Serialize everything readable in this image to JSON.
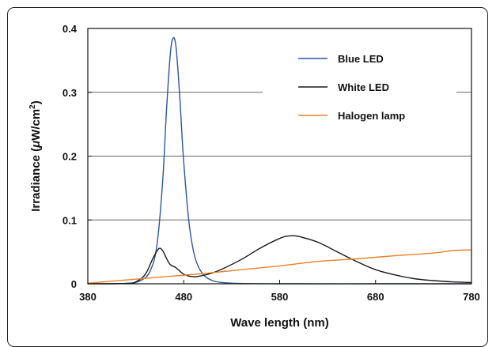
{
  "chart_data": {
    "type": "line",
    "title": "",
    "xlabel": "Wave length (nm)",
    "ylabel_prefix": "Irradiance (",
    "ylabel_mu": "μ",
    "ylabel_unit": "W/cm",
    "ylabel_sup": "2",
    "ylabel_suffix": ")",
    "xlim": [
      380,
      780
    ],
    "ylim": [
      0,
      0.4
    ],
    "xticks": [
      "380",
      "480",
      "580",
      "680",
      "780"
    ],
    "yticks": [
      "0",
      "0.1",
      "0.2",
      "0.3",
      "0.4"
    ],
    "grid": "horizontal",
    "legend_position": "top-right",
    "series": [
      {
        "name": "Blue LED",
        "color": "#2b55a6",
        "x": [
          380,
          420,
          435,
          445,
          452,
          458,
          462,
          466,
          469,
          472,
          476,
          480,
          486,
          492,
          500,
          510,
          520,
          540,
          580,
          680,
          780
        ],
        "y": [
          0,
          0.0005,
          0.005,
          0.02,
          0.06,
          0.16,
          0.27,
          0.36,
          0.385,
          0.37,
          0.29,
          0.19,
          0.09,
          0.04,
          0.015,
          0.005,
          0.002,
          0.0005,
          0,
          0,
          0
        ]
      },
      {
        "name": "White LED",
        "color": "#1a1a1a",
        "x": [
          380,
          420,
          430,
          440,
          448,
          454,
          458,
          462,
          466,
          472,
          480,
          490,
          500,
          510,
          520,
          540,
          560,
          580,
          590,
          600,
          620,
          640,
          660,
          680,
          700,
          720,
          740,
          760,
          780
        ],
        "y": [
          0,
          0.0005,
          0.003,
          0.015,
          0.04,
          0.055,
          0.052,
          0.04,
          0.03,
          0.025,
          0.015,
          0.011,
          0.013,
          0.017,
          0.023,
          0.038,
          0.056,
          0.071,
          0.075,
          0.074,
          0.065,
          0.05,
          0.035,
          0.022,
          0.014,
          0.008,
          0.005,
          0.003,
          0.002
        ]
      },
      {
        "name": "Halogen lamp",
        "color": "#e8822a",
        "x": [
          380,
          420,
          460,
          500,
          540,
          580,
          620,
          660,
          700,
          740,
          760,
          780
        ],
        "y": [
          0.001,
          0.006,
          0.011,
          0.016,
          0.022,
          0.028,
          0.035,
          0.039,
          0.044,
          0.048,
          0.052,
          0.053
        ]
      }
    ]
  }
}
